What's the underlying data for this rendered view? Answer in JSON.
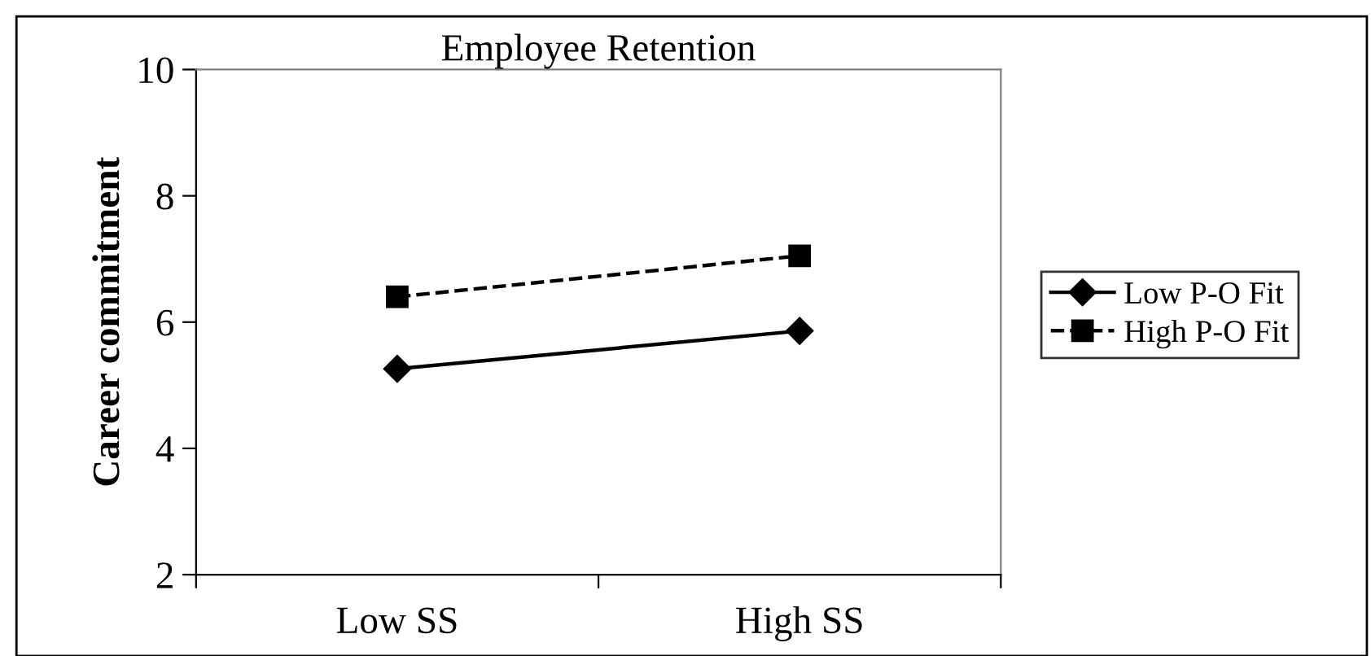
{
  "chart_data": {
    "type": "line",
    "title": "Employee Retention",
    "ylabel": "Career commitment",
    "categories": [
      "Low SS",
      "High SS"
    ],
    "series": [
      {
        "name": "Low P-O Fit",
        "color": "#000000",
        "values": [
          5.26,
          5.86
        ],
        "marker": "diamond",
        "line_style": "solid"
      },
      {
        "name": "High P-O Fit",
        "color": "#000000",
        "values": [
          6.4,
          7.05
        ],
        "marker": "square",
        "line_style": "dashed"
      }
    ],
    "ylim": [
      2,
      10
    ],
    "yticks": [
      2,
      4,
      6,
      8,
      10
    ],
    "grid": false,
    "legend": "right"
  }
}
